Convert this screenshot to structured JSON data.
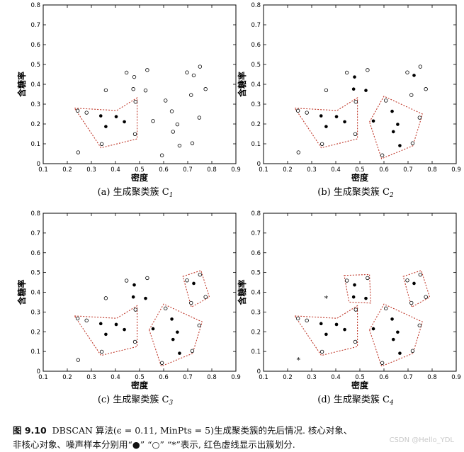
{
  "figure": {
    "caption_label": "图 9.10",
    "caption_line1": "DBSCAN 算法(ϵ = 0.11, MinPts = 5)生成聚类簇的先后情况. 核心对象、",
    "caption_line2": "非核心对象、噪声样本分别用“●” “○” “*”表示, 红色虚线显示出簇划分.",
    "watermark": "CSDN @Hello_YDL"
  },
  "colors": {
    "cluster_outline": "#c0392b",
    "core": "#000000",
    "axis": "#000000"
  },
  "markers": {
    "core": "filled-circle",
    "border": "open-circle",
    "noise": "asterisk"
  },
  "chart_data": [
    {
      "type": "scatter",
      "subtitle": "(a) 生成聚类簇 C",
      "subscript": "1",
      "xlabel": "密度",
      "ylabel": "含糖率",
      "xlim": [
        0.1,
        0.9
      ],
      "ylim": [
        0,
        0.8
      ],
      "xticks": [
        "0.1",
        "0.2",
        "0.3",
        "0.4",
        "0.5",
        "0.6",
        "0.7",
        "0.8",
        "0.9"
      ],
      "yticks": [
        "0",
        "0.1",
        "0.2",
        "0.3",
        "0.4",
        "0.5",
        "0.6",
        "0.7",
        "0.8"
      ],
      "points": [
        {
          "x": 0.243,
          "y": 0.267,
          "k": "o"
        },
        {
          "x": 0.28,
          "y": 0.257,
          "k": "o"
        },
        {
          "x": 0.245,
          "y": 0.057,
          "k": "o"
        },
        {
          "x": 0.343,
          "y": 0.099,
          "k": "o"
        },
        {
          "x": 0.339,
          "y": 0.241,
          "k": "c"
        },
        {
          "x": 0.36,
          "y": 0.37,
          "k": "o"
        },
        {
          "x": 0.36,
          "y": 0.187,
          "k": "c"
        },
        {
          "x": 0.403,
          "y": 0.237,
          "k": "c"
        },
        {
          "x": 0.437,
          "y": 0.211,
          "k": "c"
        },
        {
          "x": 0.446,
          "y": 0.459,
          "k": "o"
        },
        {
          "x": 0.478,
          "y": 0.437,
          "k": "o"
        },
        {
          "x": 0.474,
          "y": 0.376,
          "k": "o"
        },
        {
          "x": 0.481,
          "y": 0.149,
          "k": "o"
        },
        {
          "x": 0.483,
          "y": 0.312,
          "k": "o"
        },
        {
          "x": 0.525,
          "y": 0.369,
          "k": "o"
        },
        {
          "x": 0.532,
          "y": 0.472,
          "k": "o"
        },
        {
          "x": 0.556,
          "y": 0.215,
          "k": "o"
        },
        {
          "x": 0.593,
          "y": 0.042,
          "k": "o"
        },
        {
          "x": 0.608,
          "y": 0.318,
          "k": "o"
        },
        {
          "x": 0.634,
          "y": 0.264,
          "k": "o"
        },
        {
          "x": 0.639,
          "y": 0.161,
          "k": "o"
        },
        {
          "x": 0.657,
          "y": 0.198,
          "k": "o"
        },
        {
          "x": 0.666,
          "y": 0.091,
          "k": "o"
        },
        {
          "x": 0.697,
          "y": 0.46,
          "k": "o"
        },
        {
          "x": 0.719,
          "y": 0.103,
          "k": "o"
        },
        {
          "x": 0.725,
          "y": 0.445,
          "k": "o"
        },
        {
          "x": 0.748,
          "y": 0.232,
          "k": "o"
        },
        {
          "x": 0.751,
          "y": 0.489,
          "k": "o"
        },
        {
          "x": 0.774,
          "y": 0.376,
          "k": "o"
        },
        {
          "x": 0.714,
          "y": 0.346,
          "k": "o"
        }
      ],
      "clusters": [
        [
          [
            0.23,
            0.28
          ],
          [
            0.405,
            0.268
          ],
          [
            0.49,
            0.332
          ],
          [
            0.49,
            0.125
          ],
          [
            0.34,
            0.08
          ]
        ]
      ]
    },
    {
      "type": "scatter",
      "subtitle": "(b) 生成聚类簇 C",
      "subscript": "2",
      "xlabel": "密度",
      "ylabel": "含糖率",
      "xlim": [
        0.1,
        0.9
      ],
      "ylim": [
        0,
        0.8
      ],
      "xticks": [
        "0.1",
        "0.2",
        "0.3",
        "0.4",
        "0.5",
        "0.6",
        "0.7",
        "0.8",
        "0.9"
      ],
      "yticks": [
        "0",
        "0.1",
        "0.2",
        "0.3",
        "0.4",
        "0.5",
        "0.6",
        "0.7",
        "0.8"
      ],
      "points": [
        {
          "x": 0.243,
          "y": 0.267,
          "k": "o"
        },
        {
          "x": 0.28,
          "y": 0.257,
          "k": "o"
        },
        {
          "x": 0.245,
          "y": 0.057,
          "k": "o"
        },
        {
          "x": 0.343,
          "y": 0.099,
          "k": "o"
        },
        {
          "x": 0.339,
          "y": 0.241,
          "k": "c"
        },
        {
          "x": 0.36,
          "y": 0.37,
          "k": "o"
        },
        {
          "x": 0.36,
          "y": 0.187,
          "k": "c"
        },
        {
          "x": 0.403,
          "y": 0.237,
          "k": "c"
        },
        {
          "x": 0.437,
          "y": 0.211,
          "k": "c"
        },
        {
          "x": 0.446,
          "y": 0.459,
          "k": "o"
        },
        {
          "x": 0.478,
          "y": 0.437,
          "k": "c"
        },
        {
          "x": 0.474,
          "y": 0.376,
          "k": "c"
        },
        {
          "x": 0.481,
          "y": 0.149,
          "k": "o"
        },
        {
          "x": 0.483,
          "y": 0.312,
          "k": "o"
        },
        {
          "x": 0.525,
          "y": 0.369,
          "k": "c"
        },
        {
          "x": 0.532,
          "y": 0.472,
          "k": "o"
        },
        {
          "x": 0.556,
          "y": 0.215,
          "k": "c"
        },
        {
          "x": 0.593,
          "y": 0.042,
          "k": "o"
        },
        {
          "x": 0.608,
          "y": 0.318,
          "k": "o"
        },
        {
          "x": 0.634,
          "y": 0.264,
          "k": "c"
        },
        {
          "x": 0.639,
          "y": 0.161,
          "k": "c"
        },
        {
          "x": 0.657,
          "y": 0.198,
          "k": "c"
        },
        {
          "x": 0.666,
          "y": 0.091,
          "k": "c"
        },
        {
          "x": 0.697,
          "y": 0.46,
          "k": "o"
        },
        {
          "x": 0.719,
          "y": 0.103,
          "k": "o"
        },
        {
          "x": 0.725,
          "y": 0.445,
          "k": "c"
        },
        {
          "x": 0.748,
          "y": 0.232,
          "k": "o"
        },
        {
          "x": 0.751,
          "y": 0.489,
          "k": "o"
        },
        {
          "x": 0.774,
          "y": 0.376,
          "k": "o"
        },
        {
          "x": 0.714,
          "y": 0.346,
          "k": "o"
        }
      ],
      "clusters": [
        [
          [
            0.23,
            0.28
          ],
          [
            0.405,
            0.268
          ],
          [
            0.49,
            0.332
          ],
          [
            0.49,
            0.125
          ],
          [
            0.34,
            0.08
          ]
        ],
        [
          [
            0.54,
            0.21
          ],
          [
            0.6,
            0.34
          ],
          [
            0.76,
            0.25
          ],
          [
            0.72,
            0.09
          ],
          [
            0.59,
            0.025
          ]
        ]
      ]
    },
    {
      "type": "scatter",
      "subtitle": "(c) 生成聚类簇 C",
      "subscript": "3",
      "xlabel": "密度",
      "ylabel": "含糖率",
      "xlim": [
        0.1,
        0.9
      ],
      "ylim": [
        0,
        0.8
      ],
      "xticks": [
        "0.1",
        "0.2",
        "0.3",
        "0.4",
        "0.5",
        "0.6",
        "0.7",
        "0.8",
        "0.9"
      ],
      "yticks": [
        "0",
        "0.1",
        "0.2",
        "0.3",
        "0.4",
        "0.5",
        "0.6",
        "0.7",
        "0.8"
      ],
      "points": [
        {
          "x": 0.243,
          "y": 0.267,
          "k": "o"
        },
        {
          "x": 0.28,
          "y": 0.257,
          "k": "o"
        },
        {
          "x": 0.245,
          "y": 0.057,
          "k": "o"
        },
        {
          "x": 0.343,
          "y": 0.099,
          "k": "o"
        },
        {
          "x": 0.339,
          "y": 0.241,
          "k": "c"
        },
        {
          "x": 0.36,
          "y": 0.37,
          "k": "o"
        },
        {
          "x": 0.36,
          "y": 0.187,
          "k": "c"
        },
        {
          "x": 0.403,
          "y": 0.237,
          "k": "c"
        },
        {
          "x": 0.437,
          "y": 0.211,
          "k": "c"
        },
        {
          "x": 0.446,
          "y": 0.459,
          "k": "o"
        },
        {
          "x": 0.478,
          "y": 0.437,
          "k": "c"
        },
        {
          "x": 0.474,
          "y": 0.376,
          "k": "c"
        },
        {
          "x": 0.481,
          "y": 0.149,
          "k": "o"
        },
        {
          "x": 0.483,
          "y": 0.312,
          "k": "o"
        },
        {
          "x": 0.525,
          "y": 0.369,
          "k": "c"
        },
        {
          "x": 0.532,
          "y": 0.472,
          "k": "o"
        },
        {
          "x": 0.556,
          "y": 0.215,
          "k": "c"
        },
        {
          "x": 0.593,
          "y": 0.042,
          "k": "o"
        },
        {
          "x": 0.608,
          "y": 0.318,
          "k": "o"
        },
        {
          "x": 0.634,
          "y": 0.264,
          "k": "c"
        },
        {
          "x": 0.639,
          "y": 0.161,
          "k": "c"
        },
        {
          "x": 0.657,
          "y": 0.198,
          "k": "c"
        },
        {
          "x": 0.666,
          "y": 0.091,
          "k": "c"
        },
        {
          "x": 0.697,
          "y": 0.46,
          "k": "o"
        },
        {
          "x": 0.719,
          "y": 0.103,
          "k": "o"
        },
        {
          "x": 0.725,
          "y": 0.445,
          "k": "c"
        },
        {
          "x": 0.748,
          "y": 0.232,
          "k": "o"
        },
        {
          "x": 0.751,
          "y": 0.489,
          "k": "o"
        },
        {
          "x": 0.774,
          "y": 0.376,
          "k": "o"
        },
        {
          "x": 0.714,
          "y": 0.346,
          "k": "o"
        }
      ],
      "clusters": [
        [
          [
            0.23,
            0.28
          ],
          [
            0.405,
            0.268
          ],
          [
            0.49,
            0.332
          ],
          [
            0.49,
            0.125
          ],
          [
            0.34,
            0.08
          ]
        ],
        [
          [
            0.54,
            0.21
          ],
          [
            0.6,
            0.34
          ],
          [
            0.76,
            0.25
          ],
          [
            0.72,
            0.09
          ],
          [
            0.59,
            0.025
          ]
        ],
        [
          [
            0.68,
            0.48
          ],
          [
            0.755,
            0.51
          ],
          [
            0.79,
            0.375
          ],
          [
            0.715,
            0.325
          ]
        ]
      ]
    },
    {
      "type": "scatter",
      "subtitle": "(d) 生成聚类簇 C",
      "subscript": "4",
      "xlabel": "密度",
      "ylabel": "含糖率",
      "xlim": [
        0.1,
        0.9
      ],
      "ylim": [
        0,
        0.8
      ],
      "xticks": [
        "0.1",
        "0.2",
        "0.3",
        "0.4",
        "0.5",
        "0.6",
        "0.7",
        "0.8",
        "0.9"
      ],
      "yticks": [
        "0",
        "0.1",
        "0.2",
        "0.3",
        "0.4",
        "0.5",
        "0.6",
        "0.7",
        "0.8"
      ],
      "points": [
        {
          "x": 0.243,
          "y": 0.267,
          "k": "o"
        },
        {
          "x": 0.28,
          "y": 0.257,
          "k": "o"
        },
        {
          "x": 0.245,
          "y": 0.057,
          "k": "n"
        },
        {
          "x": 0.343,
          "y": 0.099,
          "k": "o"
        },
        {
          "x": 0.339,
          "y": 0.241,
          "k": "c"
        },
        {
          "x": 0.36,
          "y": 0.37,
          "k": "n"
        },
        {
          "x": 0.36,
          "y": 0.187,
          "k": "c"
        },
        {
          "x": 0.403,
          "y": 0.237,
          "k": "c"
        },
        {
          "x": 0.437,
          "y": 0.211,
          "k": "c"
        },
        {
          "x": 0.446,
          "y": 0.459,
          "k": "o"
        },
        {
          "x": 0.478,
          "y": 0.437,
          "k": "c"
        },
        {
          "x": 0.474,
          "y": 0.376,
          "k": "c"
        },
        {
          "x": 0.481,
          "y": 0.149,
          "k": "o"
        },
        {
          "x": 0.483,
          "y": 0.312,
          "k": "o"
        },
        {
          "x": 0.525,
          "y": 0.369,
          "k": "c"
        },
        {
          "x": 0.532,
          "y": 0.472,
          "k": "o"
        },
        {
          "x": 0.556,
          "y": 0.215,
          "k": "c"
        },
        {
          "x": 0.593,
          "y": 0.042,
          "k": "o"
        },
        {
          "x": 0.608,
          "y": 0.318,
          "k": "o"
        },
        {
          "x": 0.634,
          "y": 0.264,
          "k": "c"
        },
        {
          "x": 0.639,
          "y": 0.161,
          "k": "c"
        },
        {
          "x": 0.657,
          "y": 0.198,
          "k": "c"
        },
        {
          "x": 0.666,
          "y": 0.091,
          "k": "c"
        },
        {
          "x": 0.697,
          "y": 0.46,
          "k": "o"
        },
        {
          "x": 0.719,
          "y": 0.103,
          "k": "o"
        },
        {
          "x": 0.725,
          "y": 0.445,
          "k": "c"
        },
        {
          "x": 0.748,
          "y": 0.232,
          "k": "o"
        },
        {
          "x": 0.751,
          "y": 0.489,
          "k": "o"
        },
        {
          "x": 0.774,
          "y": 0.376,
          "k": "o"
        },
        {
          "x": 0.714,
          "y": 0.346,
          "k": "o"
        }
      ],
      "clusters": [
        [
          [
            0.23,
            0.28
          ],
          [
            0.405,
            0.268
          ],
          [
            0.49,
            0.332
          ],
          [
            0.49,
            0.125
          ],
          [
            0.34,
            0.08
          ]
        ],
        [
          [
            0.54,
            0.21
          ],
          [
            0.6,
            0.34
          ],
          [
            0.76,
            0.25
          ],
          [
            0.72,
            0.09
          ],
          [
            0.59,
            0.025
          ]
        ],
        [
          [
            0.68,
            0.48
          ],
          [
            0.755,
            0.51
          ],
          [
            0.79,
            0.375
          ],
          [
            0.715,
            0.325
          ]
        ],
        [
          [
            0.435,
            0.485
          ],
          [
            0.54,
            0.49
          ],
          [
            0.545,
            0.345
          ],
          [
            0.455,
            0.35
          ]
        ]
      ]
    }
  ]
}
